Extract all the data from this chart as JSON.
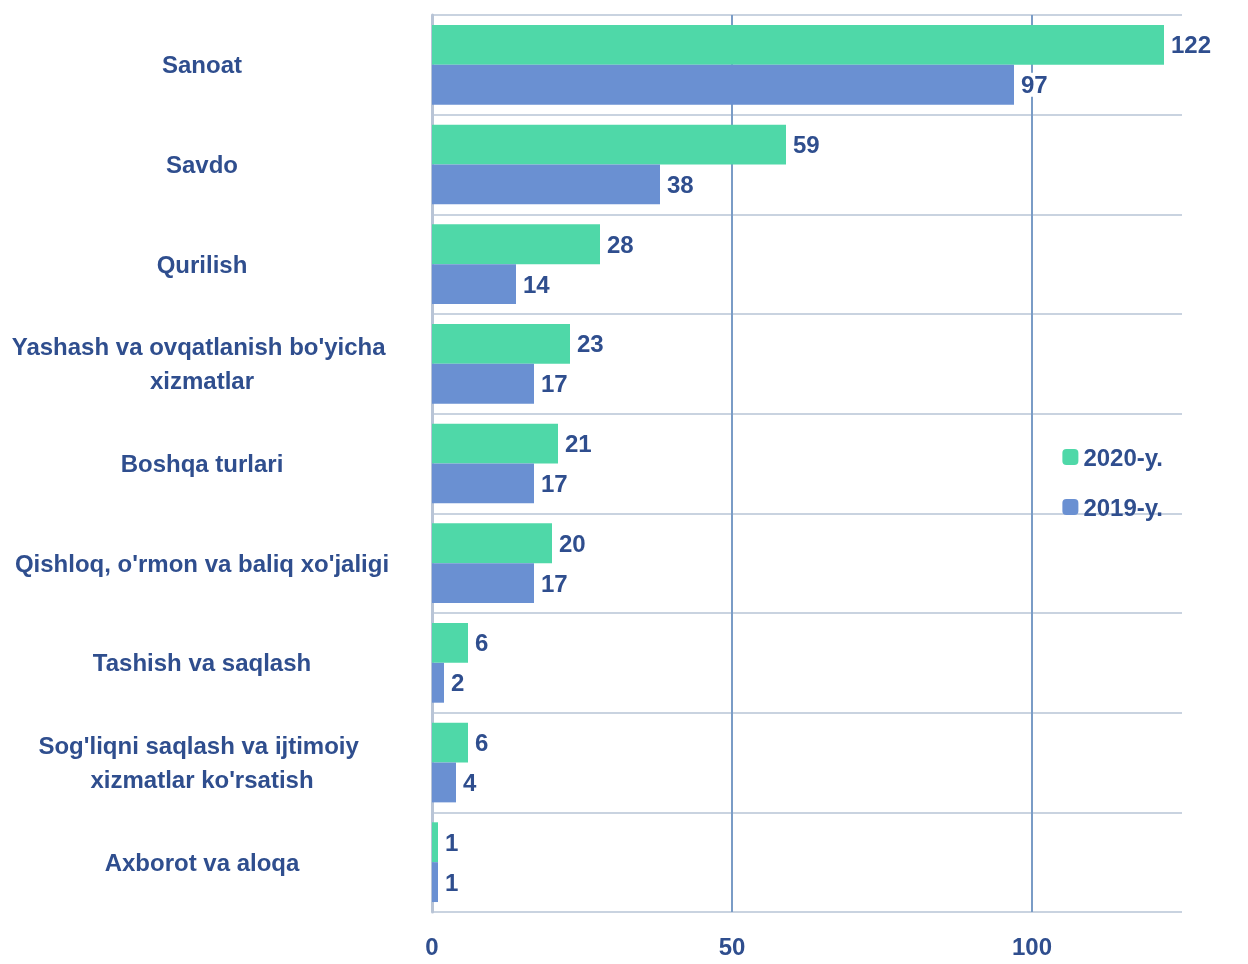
{
  "chart_data": {
    "type": "bar",
    "orientation": "horizontal",
    "categories": [
      "Sanoat",
      "Savdo",
      "Qurilish",
      "Yashash va ovqatlanish bo'yicha xizmatlar",
      "Boshqa turlari",
      "Qishloq, o'rmon va baliq xo'jaligi",
      "Tashish va saqlash",
      "Sog'liqni saqlash va ijtimoiy xizmatlar ko'rsatish",
      "Axborot va aloqa"
    ],
    "series": [
      {
        "name": "2020-y.",
        "color": "#4fd8a8",
        "values": [
          122,
          59,
          28,
          23,
          21,
          20,
          6,
          6,
          1
        ]
      },
      {
        "name": "2019-y.",
        "color": "#6a90d2",
        "values": [
          97,
          38,
          14,
          17,
          17,
          17,
          2,
          4,
          1
        ]
      }
    ],
    "xlim": [
      0,
      125
    ],
    "xticks": [
      0,
      50,
      100
    ],
    "grid": true,
    "legend": "right",
    "data_labels": true
  }
}
